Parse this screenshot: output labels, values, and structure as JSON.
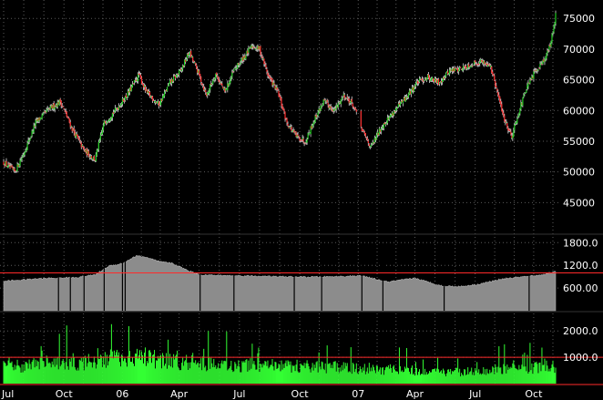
{
  "colors": {
    "background": "#000000",
    "grid": "#5a5a5a",
    "text": "#ffffff",
    "up_candle": "#22cc22",
    "down_candle": "#ff2a2a",
    "wick": "#d8d8d8",
    "indicator_area": "#8c8c8c",
    "volume_bars": "#33ff33",
    "reference_line": "#ff2a2a",
    "separator": "#ff2a2a"
  },
  "chart_data": [
    {
      "type": "candlestick",
      "panel": "price",
      "ylim": [
        40000,
        78000
      ],
      "y_ticks": [
        "45000",
        "50000",
        "55000",
        "60000",
        "65000",
        "70000",
        "75000"
      ],
      "x_ticks": [
        "Jul",
        "Oct",
        "06",
        "Apr",
        "Jul",
        "Oct",
        "07",
        "Apr",
        "Jul",
        "Oct"
      ],
      "x_tick_index": [
        0,
        66,
        130,
        192,
        258,
        324,
        388,
        450,
        516,
        580
      ],
      "n_sessions": 605,
      "close_anchors": [
        [
          0,
          51500
        ],
        [
          12,
          50000
        ],
        [
          22,
          53000
        ],
        [
          35,
          58000
        ],
        [
          48,
          60000
        ],
        [
          62,
          61500
        ],
        [
          75,
          57000
        ],
        [
          88,
          53500
        ],
        [
          100,
          52000
        ],
        [
          110,
          58000
        ],
        [
          122,
          60000
        ],
        [
          135,
          62500
        ],
        [
          148,
          65800
        ],
        [
          156,
          63000
        ],
        [
          170,
          61000
        ],
        [
          182,
          64500
        ],
        [
          194,
          66500
        ],
        [
          203,
          69500
        ],
        [
          212,
          66500
        ],
        [
          222,
          62500
        ],
        [
          232,
          66000
        ],
        [
          242,
          63000
        ],
        [
          252,
          66500
        ],
        [
          262,
          68500
        ],
        [
          272,
          70500
        ],
        [
          280,
          70000
        ],
        [
          290,
          65500
        ],
        [
          300,
          63000
        ],
        [
          310,
          58000
        ],
        [
          320,
          55800
        ],
        [
          330,
          55000
        ],
        [
          340,
          58500
        ],
        [
          350,
          61500
        ],
        [
          362,
          60000
        ],
        [
          372,
          62500
        ],
        [
          382,
          61000
        ],
        [
          393,
          56500
        ],
        [
          402,
          54000
        ],
        [
          414,
          57500
        ],
        [
          428,
          60000
        ],
        [
          440,
          62000
        ],
        [
          452,
          64500
        ],
        [
          464,
          65500
        ],
        [
          476,
          64500
        ],
        [
          488,
          66500
        ],
        [
          500,
          66800
        ],
        [
          512,
          67500
        ],
        [
          522,
          68000
        ],
        [
          532,
          67500
        ],
        [
          540,
          63000
        ],
        [
          548,
          58500
        ],
        [
          556,
          55800
        ],
        [
          564,
          60000
        ],
        [
          572,
          63500
        ],
        [
          582,
          66500
        ],
        [
          592,
          68500
        ],
        [
          598,
          70500
        ],
        [
          604,
          75500
        ]
      ]
    },
    {
      "type": "area",
      "panel": "indicator",
      "ylim": [
        0,
        2000
      ],
      "y_ticks": [
        "600.00",
        "1200.0",
        "1800.0"
      ],
      "reference_line": 1000,
      "value_anchors": [
        [
          0,
          780
        ],
        [
          40,
          850
        ],
        [
          80,
          880
        ],
        [
          100,
          950
        ],
        [
          115,
          1180
        ],
        [
          130,
          1250
        ],
        [
          145,
          1450
        ],
        [
          155,
          1420
        ],
        [
          170,
          1300
        ],
        [
          185,
          1250
        ],
        [
          200,
          1080
        ],
        [
          215,
          950
        ],
        [
          240,
          930
        ],
        [
          270,
          920
        ],
        [
          300,
          900
        ],
        [
          330,
          890
        ],
        [
          360,
          900
        ],
        [
          392,
          920
        ],
        [
          420,
          760
        ],
        [
          450,
          860
        ],
        [
          480,
          650
        ],
        [
          500,
          640
        ],
        [
          520,
          700
        ],
        [
          545,
          840
        ],
        [
          570,
          900
        ],
        [
          590,
          950
        ],
        [
          604,
          1050
        ]
      ]
    },
    {
      "type": "bar",
      "panel": "volume",
      "ylim": [
        0,
        2700
      ],
      "y_ticks": [
        "1000.0",
        "2000.0"
      ],
      "reference_line": 1000,
      "level_anchors": [
        [
          0,
          700
        ],
        [
          40,
          800
        ],
        [
          80,
          850
        ],
        [
          110,
          1000
        ],
        [
          130,
          1150
        ],
        [
          155,
          1100
        ],
        [
          180,
          950
        ],
        [
          210,
          880
        ],
        [
          250,
          750
        ],
        [
          300,
          750
        ],
        [
          350,
          700
        ],
        [
          392,
          650
        ],
        [
          420,
          600
        ],
        [
          460,
          520
        ],
        [
          500,
          480
        ],
        [
          540,
          600
        ],
        [
          570,
          650
        ],
        [
          604,
          750
        ]
      ]
    }
  ]
}
